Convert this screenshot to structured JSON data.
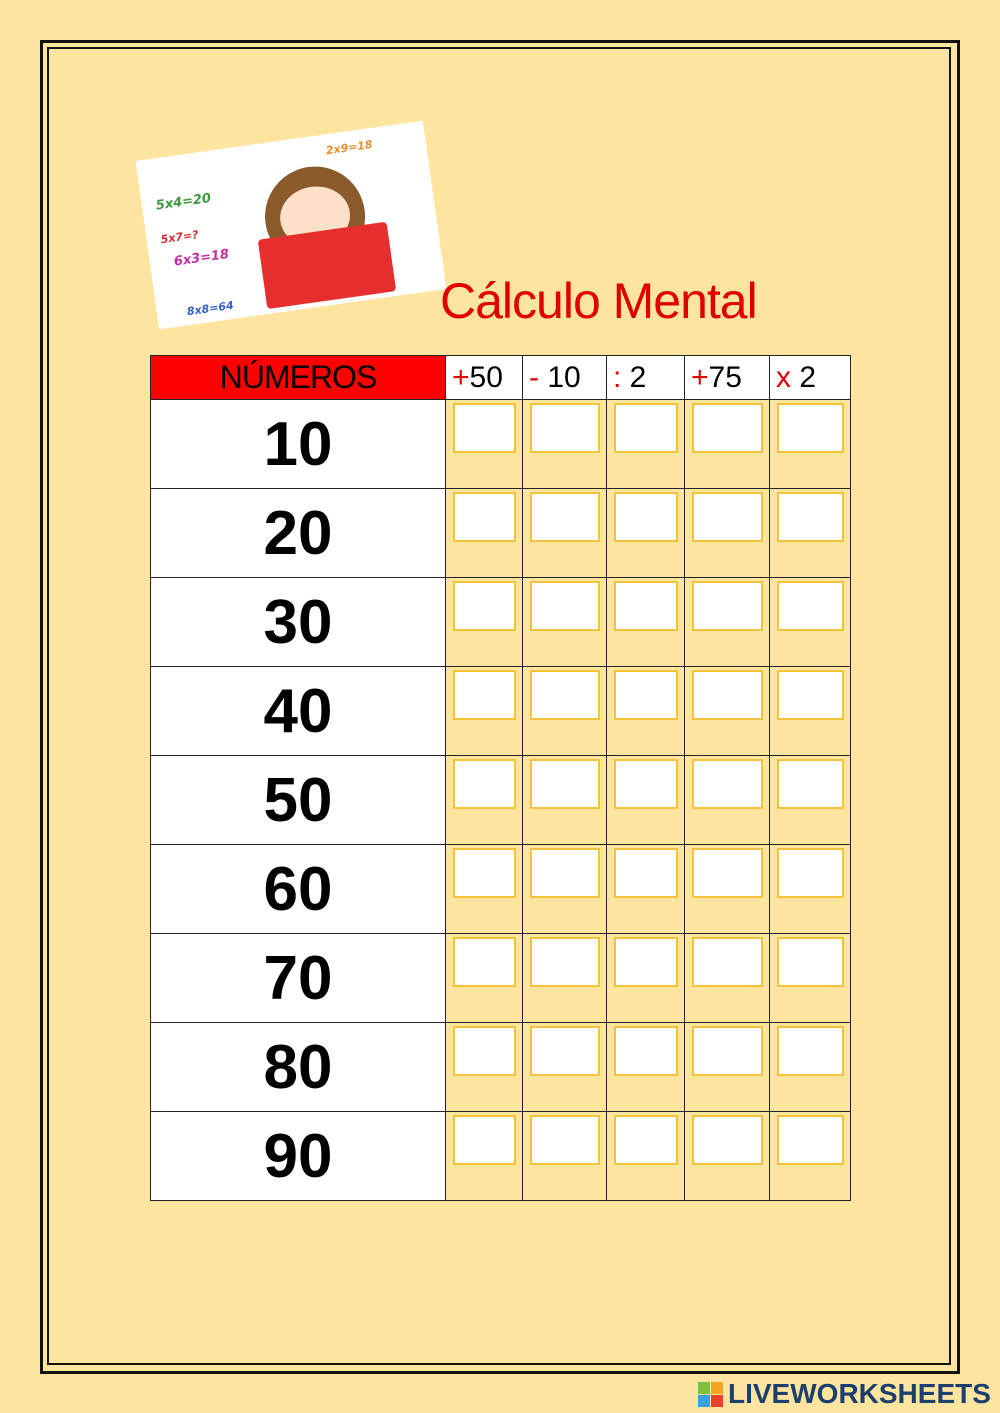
{
  "title": "Cálculo Mental",
  "image_equations": [
    "5x4=20",
    "5x7=?",
    "6x3=18",
    "8x8=64",
    "2x9=18"
  ],
  "table": {
    "header": "NÚMEROS",
    "operations": [
      {
        "sign": "+",
        "value": "50"
      },
      {
        "sign": "-",
        "value": " 10"
      },
      {
        "sign": ":",
        "value": " 2"
      },
      {
        "sign": "+",
        "value": "75"
      },
      {
        "sign": "x",
        "value": " 2"
      }
    ],
    "rows": [
      "10",
      "20",
      "30",
      "40",
      "50",
      "60",
      "70",
      "80",
      "90"
    ]
  },
  "colors": {
    "background": "#fde59f",
    "accent": "#e00000",
    "input_border": "#f5c33a"
  },
  "logo": "LIVEWORKSHEETS"
}
